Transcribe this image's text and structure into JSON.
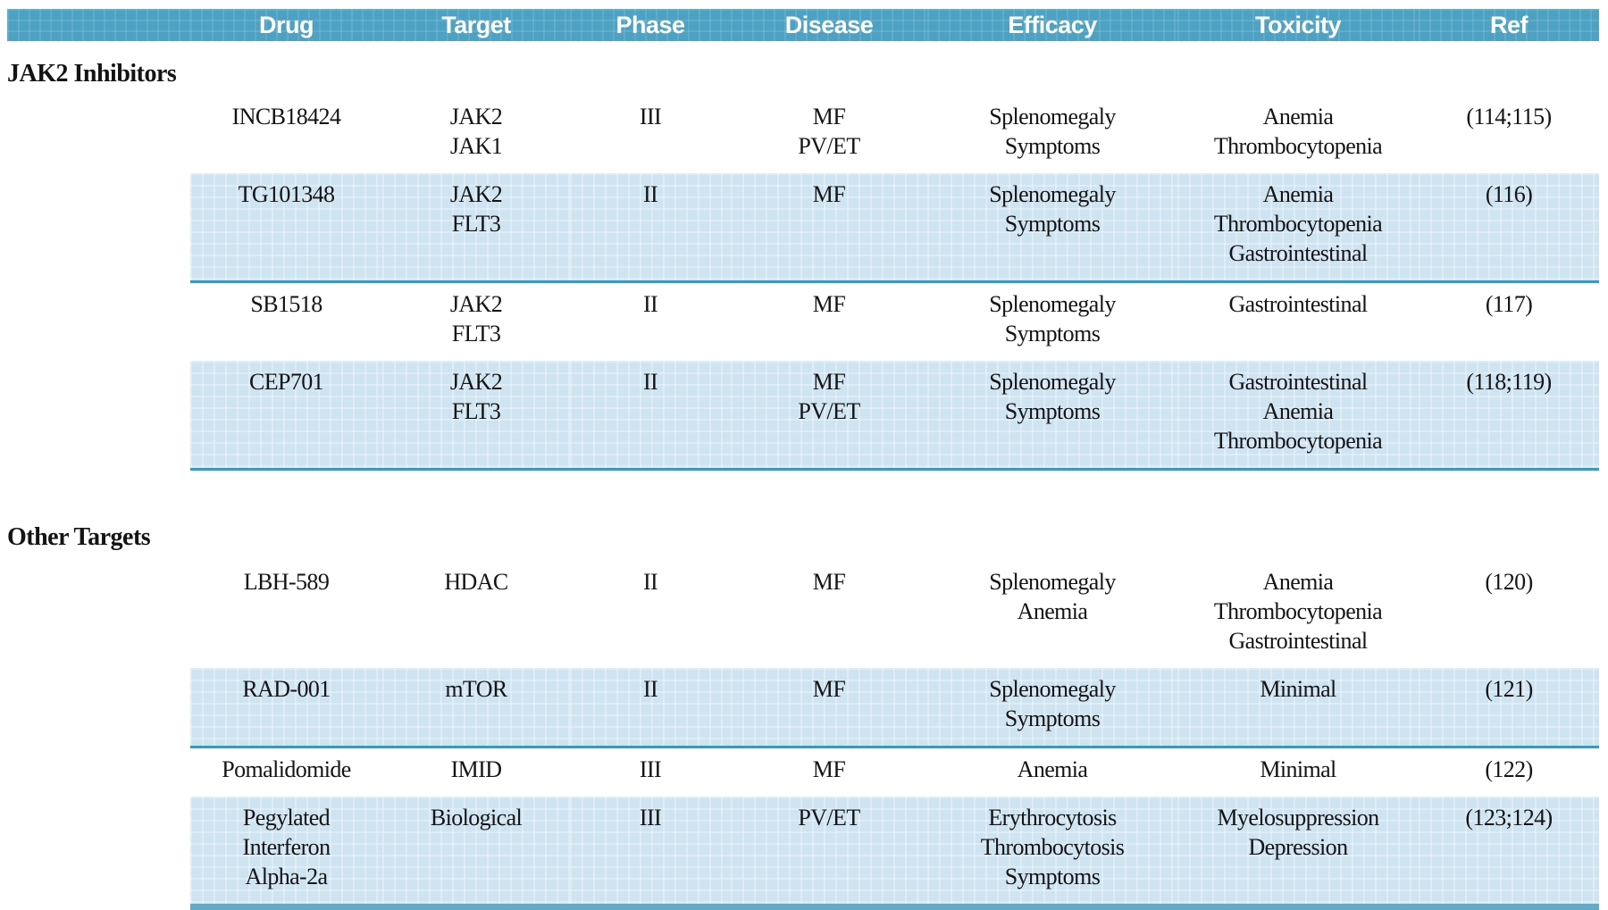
{
  "table": {
    "columns": [
      "Drug",
      "Target",
      "Phase",
      "Disease",
      "Efficacy",
      "Toxicity",
      "Ref"
    ],
    "sections": [
      {
        "title": "JAK2 Inhibitors",
        "rows": [
          {
            "shaded": false,
            "cells": [
              [
                "INCB18424"
              ],
              [
                "JAK2",
                "JAK1"
              ],
              [
                "III"
              ],
              [
                "MF",
                "PV/ET"
              ],
              [
                "Splenomegaly",
                "Symptoms"
              ],
              [
                "Anemia",
                "Thrombocytopenia"
              ],
              [
                "(114;115)"
              ]
            ]
          },
          {
            "shaded": true,
            "cells": [
              [
                "TG101348"
              ],
              [
                "JAK2",
                "FLT3"
              ],
              [
                "II"
              ],
              [
                "MF"
              ],
              [
                "Splenomegaly",
                "Symptoms"
              ],
              [
                "Anemia",
                "Thrombocytopenia",
                "Gastrointestinal"
              ],
              [
                "(116)"
              ]
            ]
          },
          {
            "shaded": false,
            "cells": [
              [
                "SB1518"
              ],
              [
                "JAK2",
                "FLT3"
              ],
              [
                "II"
              ],
              [
                "MF"
              ],
              [
                "Splenomegaly",
                "Symptoms"
              ],
              [
                "Gastrointestinal"
              ],
              [
                "(117)"
              ]
            ]
          },
          {
            "shaded": true,
            "cells": [
              [
                "CEP701"
              ],
              [
                "JAK2",
                "FLT3"
              ],
              [
                "II"
              ],
              [
                "MF",
                "PV/ET"
              ],
              [
                "Splenomegaly",
                "Symptoms"
              ],
              [
                "Gastrointestinal",
                "Anemia",
                "Thrombocytopenia"
              ],
              [
                "(118;119)"
              ]
            ]
          }
        ]
      },
      {
        "title": "Other Targets",
        "rows": [
          {
            "shaded": false,
            "cells": [
              [
                "LBH-589"
              ],
              [
                "HDAC"
              ],
              [
                "II"
              ],
              [
                "MF"
              ],
              [
                "Splenomegaly",
                "Anemia"
              ],
              [
                "Anemia",
                "Thrombocytopenia",
                "Gastrointestinal"
              ],
              [
                "(120)"
              ]
            ]
          },
          {
            "shaded": true,
            "cells": [
              [
                "RAD-001"
              ],
              [
                "mTOR"
              ],
              [
                "II"
              ],
              [
                "MF"
              ],
              [
                "Splenomegaly",
                "Symptoms"
              ],
              [
                "Minimal"
              ],
              [
                "(121)"
              ]
            ]
          },
          {
            "shaded": false,
            "cells": [
              [
                "Pomalidomide"
              ],
              [
                "IMID"
              ],
              [
                "III"
              ],
              [
                "MF"
              ],
              [
                "Anemia"
              ],
              [
                "Minimal"
              ],
              [
                "(122)"
              ]
            ]
          },
          {
            "shaded": true,
            "cells": [
              [
                "Pegylated",
                "Interferon",
                "Alpha-2a"
              ],
              [
                "Biological"
              ],
              [
                "III"
              ],
              [
                "PV/ET"
              ],
              [
                "Erythrocytosis",
                "Thrombocytosis",
                "Symptoms"
              ],
              [
                "Myelosuppression",
                "Depression"
              ],
              [
                "(123;124)"
              ]
            ]
          }
        ]
      }
    ]
  },
  "colors": {
    "header_bg": "#4da2c4",
    "row_shade": "#cfe4f1",
    "row_divider": "#2f9dc9",
    "bottom_border": "#63aac6",
    "text": "#141414",
    "header_text": "#ffffff"
  },
  "column_keys": [
    "drug",
    "target",
    "phase",
    "disease",
    "efficacy",
    "toxicity",
    "ref"
  ]
}
